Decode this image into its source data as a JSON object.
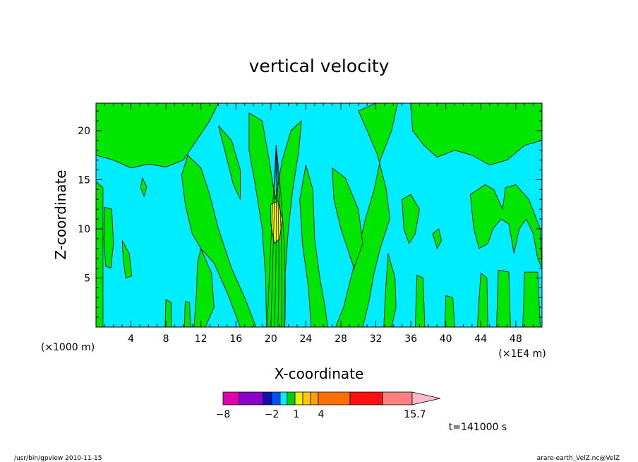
{
  "chart_data": {
    "type": "heatmap",
    "title": "vertical velocity",
    "xlabel": "X-coordinate",
    "ylabel": "Z-coordinate",
    "x_scale_note": "(×1E4 m)",
    "y_scale_note": "(×1000 m)",
    "x_ticks": [
      4,
      8,
      12,
      16,
      20,
      24,
      28,
      32,
      36,
      40,
      44,
      48
    ],
    "y_ticks": [
      5,
      10,
      15,
      20
    ],
    "xlim": [
      0,
      51
    ],
    "ylim": [
      0,
      22.8
    ],
    "colorbar": {
      "levels": [
        -8,
        -2,
        1,
        4,
        15.7
      ],
      "level_labels": [
        "−8",
        "−2",
        "1",
        "4",
        "15.7"
      ],
      "colors": [
        "#e000b0",
        "#8800cc",
        "#1010b0",
        "#0050ff",
        "#00ecff",
        "#00d000",
        "#eef000",
        "#ffc800",
        "#ffa000",
        "#ff7000",
        "#ff1010",
        "#ff8080",
        "#ffb8c8"
      ]
    },
    "field_colors": {
      "background": "#00ecff",
      "positive": "#00e600",
      "core": "#eef000"
    },
    "time_label": "t=141000 s"
  },
  "footer": {
    "left": "/usr/bin/gpview   2010-11-15",
    "right": "arare-earth_VelZ.nc@VelZ"
  }
}
